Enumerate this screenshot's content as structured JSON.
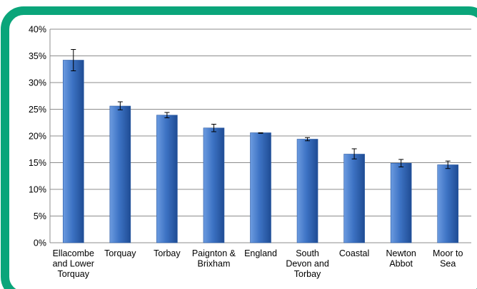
{
  "colors": {
    "border": "#0aa57a",
    "bar_top": "#6c9be0",
    "bar_mid": "#3d73c4",
    "bar_bottom": "#1f4c94",
    "grid": "#8c8c8c"
  },
  "chart_data": {
    "type": "bar",
    "title": "",
    "xlabel": "",
    "ylabel": "",
    "ylim": [
      0,
      40
    ],
    "yticks": [
      "0%",
      "5%",
      "10%",
      "15%",
      "20%",
      "25%",
      "30%",
      "35%",
      "40%"
    ],
    "grid": true,
    "error_bars": true,
    "categories": [
      [
        "Ellacombe",
        "and Lower",
        "Torquay"
      ],
      [
        "Torquay"
      ],
      [
        "Torbay"
      ],
      [
        "Paignton &",
        "Brixham"
      ],
      [
        "England"
      ],
      [
        "South",
        "Devon and",
        "Torbay"
      ],
      [
        "Coastal"
      ],
      [
        "Newton",
        "Abbot"
      ],
      [
        "Moor to",
        "Sea"
      ]
    ],
    "values": [
      34.2,
      25.6,
      23.9,
      21.5,
      20.6,
      19.4,
      16.6,
      14.9,
      14.6
    ],
    "error_low": [
      32.2,
      24.9,
      23.4,
      20.8,
      20.5,
      19.1,
      15.7,
      14.2,
      13.9
    ],
    "error_high": [
      36.2,
      26.4,
      24.4,
      22.2,
      20.6,
      19.7,
      17.6,
      15.6,
      15.3
    ]
  }
}
